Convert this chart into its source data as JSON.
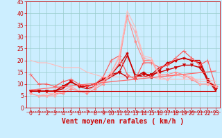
{
  "xlabel": "Vent moyen/en rafales ( km/h )",
  "bg_color": "#cceeff",
  "grid_color": "#99cccc",
  "xlim": [
    -0.5,
    23.5
  ],
  "ylim": [
    0,
    45
  ],
  "yticks": [
    0,
    5,
    10,
    15,
    20,
    25,
    30,
    35,
    40,
    45
  ],
  "xticks": [
    0,
    1,
    2,
    3,
    4,
    5,
    6,
    7,
    8,
    9,
    10,
    11,
    12,
    13,
    14,
    15,
    16,
    17,
    18,
    19,
    20,
    21,
    22,
    23
  ],
  "series": [
    {
      "x": [
        0,
        1,
        2,
        3,
        4,
        5,
        6,
        7,
        8,
        9,
        10,
        11,
        12,
        13,
        14,
        15,
        16,
        17,
        18,
        19,
        20,
        21,
        22,
        23
      ],
      "y": [
        7,
        7,
        7,
        7,
        8,
        11,
        9,
        8,
        9,
        11,
        13,
        15,
        22,
        14,
        13,
        14,
        17,
        18,
        20,
        21,
        20,
        20,
        12,
        7
      ],
      "color": "#cc0000",
      "lw": 1.0,
      "marker": null
    },
    {
      "x": [
        0,
        1,
        2,
        3,
        4,
        5,
        6,
        7,
        8,
        9,
        10,
        11,
        12,
        13,
        14,
        15,
        16,
        17,
        18,
        19,
        20,
        21,
        22,
        23
      ],
      "y": [
        7,
        7,
        7,
        7,
        9,
        11,
        9,
        9,
        10,
        12,
        14,
        18,
        23,
        13,
        15,
        13,
        16,
        19,
        20,
        21,
        20,
        19,
        11,
        9
      ],
      "color": "#cc0000",
      "lw": 1.0,
      "marker": "*",
      "ms": 3
    },
    {
      "x": [
        0,
        1,
        2,
        3,
        4,
        5,
        6,
        7,
        8,
        9,
        10,
        11,
        12,
        13,
        14,
        15,
        16,
        17,
        18,
        19,
        20,
        21,
        22,
        23
      ],
      "y": [
        7,
        7,
        7,
        7,
        9,
        11,
        9,
        9,
        10,
        12,
        14,
        15,
        13,
        13,
        14,
        14,
        15,
        16,
        17,
        18,
        18,
        17,
        12,
        8
      ],
      "color": "#cc0000",
      "lw": 1.0,
      "marker": "v",
      "ms": 3
    },
    {
      "x": [
        0,
        1,
        2,
        3,
        4,
        5,
        6,
        7,
        8,
        9,
        10,
        11,
        12,
        13,
        14,
        15,
        16,
        17,
        18,
        19,
        20,
        21,
        22,
        23
      ],
      "y": [
        14,
        10,
        10,
        9,
        11,
        12,
        10,
        9,
        10,
        13,
        20,
        22,
        14,
        12,
        19,
        19,
        17,
        18,
        21,
        24,
        21,
        18,
        20,
        9
      ],
      "color": "#ff5555",
      "lw": 0.8,
      "marker": "+",
      "ms": 4
    },
    {
      "x": [
        0,
        1,
        2,
        3,
        4,
        5,
        6,
        7,
        8,
        9,
        10,
        11,
        12,
        13,
        14,
        15,
        16,
        17,
        18,
        19,
        20,
        21,
        22,
        23
      ],
      "y": [
        6,
        5,
        5,
        6,
        6,
        8,
        7,
        6,
        8,
        10,
        14,
        19,
        39,
        28,
        20,
        20,
        14,
        14,
        15,
        14,
        12,
        10,
        10,
        9
      ],
      "color": "#ff8888",
      "lw": 0.8,
      "marker": "*",
      "ms": 3
    },
    {
      "x": [
        0,
        1,
        2,
        3,
        4,
        5,
        6,
        7,
        8,
        9,
        10,
        11,
        12,
        13,
        14,
        15,
        16,
        17,
        18,
        19,
        20,
        21,
        22,
        23
      ],
      "y": [
        6,
        5,
        6,
        6,
        7,
        9,
        7,
        7,
        9,
        11,
        15,
        22,
        41,
        34,
        22,
        21,
        14,
        13,
        14,
        14,
        13,
        11,
        11,
        10
      ],
      "color": "#ffbbbb",
      "lw": 0.8,
      "marker": null
    },
    {
      "x": [
        0,
        1,
        2,
        3,
        4,
        5,
        6,
        7,
        8,
        9,
        10,
        11,
        12,
        13,
        14,
        15,
        16,
        17,
        18,
        19,
        20,
        21,
        22,
        23
      ],
      "y": [
        6,
        5,
        5,
        5,
        7,
        9,
        7,
        7,
        9,
        11,
        15,
        21,
        38,
        32,
        21,
        20,
        13,
        12,
        14,
        13,
        13,
        10,
        10,
        9
      ],
      "color": "#ffaaaa",
      "lw": 0.8,
      "marker": "*",
      "ms": 3
    },
    {
      "x": [
        0,
        1,
        2,
        3,
        4,
        5,
        6,
        7,
        8,
        9,
        10,
        11,
        12,
        13,
        14,
        15,
        16,
        17,
        18,
        19,
        20,
        21,
        22,
        23
      ],
      "y": [
        20,
        19,
        19,
        18,
        17,
        17,
        17,
        15,
        14,
        13,
        13,
        13,
        13,
        13,
        13,
        13,
        12,
        12,
        12,
        12,
        12,
        12,
        12,
        11
      ],
      "color": "#ffbbbb",
      "lw": 0.8,
      "marker": null
    },
    {
      "x": [
        0,
        23
      ],
      "y": [
        7.5,
        15.5
      ],
      "color": "#ff6666",
      "lw": 0.9,
      "marker": null
    },
    {
      "x": [
        0,
        23
      ],
      "y": [
        7.0,
        7.0
      ],
      "color": "#cc0000",
      "lw": 0.8,
      "marker": null
    }
  ],
  "bottom_markers_color": "#cc0000",
  "xlabel_color": "#cc0000",
  "xlabel_fontsize": 7,
  "tick_color": "#cc0000",
  "tick_fontsize": 5.5
}
